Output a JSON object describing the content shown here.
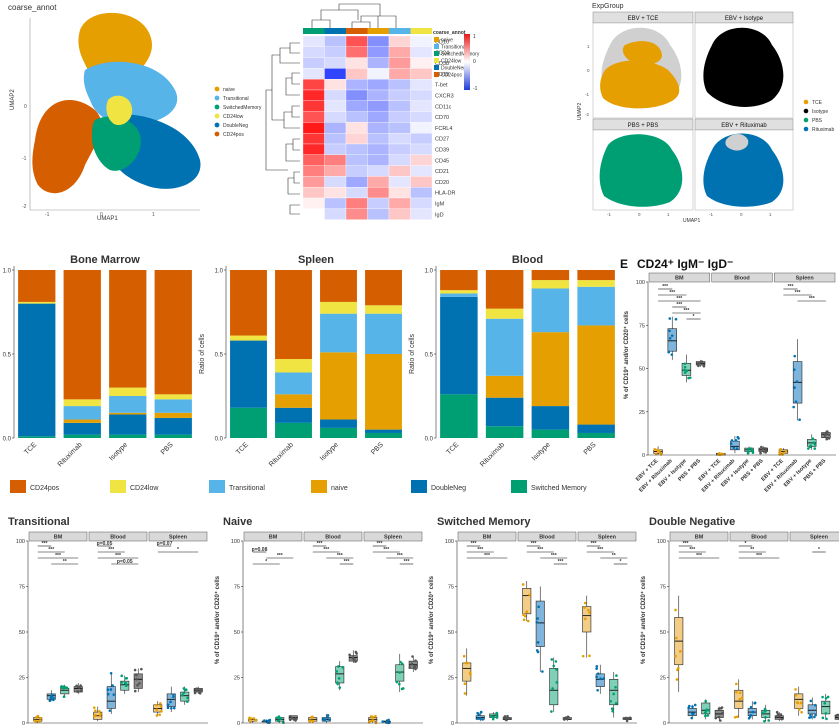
{
  "colors": {
    "CD24pos": "#D55E00",
    "CD24low": "#F0E442",
    "Transitional": "#56B4E9",
    "naive": "#E69F00",
    "DoubleNeg": "#0072B2",
    "SwitchedMemory": "#009E73",
    "TCE": "#E69F00",
    "Isotype": "#000000",
    "PBS": "#009E73",
    "Rituximab": "#0072B2"
  },
  "panelA": {
    "title": "coarse_annot",
    "xlabel": "UMAP1",
    "ylabel": "UMAP2",
    "legend": [
      "naive",
      "Transitional",
      "SwitchedMemory",
      "CD24low",
      "DoubleNeg",
      "CD24pos"
    ],
    "xticks": [
      "-1",
      "0",
      "1"
    ],
    "yticks": [
      "0",
      "-1",
      "-2"
    ]
  },
  "panelHeatmap": {
    "legend_title": "coarse_annot",
    "legend": [
      "naive",
      "Transitional",
      "SwitchedMemory",
      "CD24low",
      "DoubleNeg",
      "CD24pos"
    ],
    "scale_ticks": [
      "1",
      "0",
      "-1"
    ],
    "rows": [
      "CD10",
      "CD24",
      "CD38",
      "CD19",
      "T-bet",
      "CXCR3",
      "CD11c",
      "CD70",
      "FCRL4",
      "CD27",
      "CD39",
      "CD45",
      "CD21",
      "CD20",
      "HLA-DR",
      "IgM",
      "IgD"
    ]
  },
  "panelExpGroup": {
    "title": "ExpGroup",
    "facets": [
      "EBV + TCE",
      "EBV + Isotype",
      "PBS + PBS",
      "EBV + Rituximab"
    ],
    "xlabel": "UMAP1",
    "ylabel": "UMAP2",
    "xticks": [
      "-1",
      "0",
      "1"
    ],
    "yticks": [
      "1",
      "0",
      "-1",
      "-2"
    ],
    "legend": [
      "TCE",
      "Isotype",
      "PBS",
      "Rituximab"
    ]
  },
  "stackedTitles": [
    "Bone Marrow",
    "Spleen",
    "Blood"
  ],
  "stackedYlabel": "Ratio of cells",
  "stackedYticks": [
    "1.0",
    "0.5",
    "0.0"
  ],
  "stackLegend": [
    "CD24pos",
    "CD24low",
    "Transitional",
    "naive",
    "DoubleNeg",
    "Switched Memory"
  ],
  "panelE": {
    "letter": "E",
    "title": "CD24⁺ IgM⁻ IgD⁻",
    "facets": [
      "BM",
      "Blood",
      "Spleen"
    ],
    "ylabel": "% of CD19⁺ and/or CD20⁺ cells",
    "yticks": [
      "100",
      "75",
      "50",
      "25",
      "0"
    ],
    "xticks": [
      "EBV + TCE",
      "EBV + Rituximab",
      "EBV + Isotype",
      "PBS + PBS"
    ]
  },
  "bottomTitles": [
    "Transitional",
    "Naive",
    "Switched Memory",
    "Double Negative"
  ],
  "bottomFacets": [
    "BM",
    "Blood",
    "Spleen"
  ],
  "bottomYlabel": "% of CD19⁺ and/or CD20⁺ cells",
  "bottomYticks": [
    "100",
    "75",
    "50",
    "25",
    "0"
  ],
  "sig": {
    "p05": "p=0.05",
    "p07": "p=0.07",
    "p08": "p=0.08"
  },
  "chart_data": [
    {
      "type": "bar",
      "title": "Bone Marrow",
      "ylabel": "",
      "ylim": [
        0,
        1
      ],
      "categories": [
        "TCE",
        "Rituximab",
        "Isotype",
        "PBS"
      ],
      "series": [
        {
          "name": "Switched Memory",
          "values": [
            0.01,
            0.02,
            0.02,
            0.02
          ]
        },
        {
          "name": "DoubleNeg",
          "values": [
            0.79,
            0.07,
            0.12,
            0.1
          ]
        },
        {
          "name": "naive",
          "values": [
            0.0,
            0.02,
            0.01,
            0.03
          ]
        },
        {
          "name": "Transitional",
          "values": [
            0.0,
            0.08,
            0.1,
            0.08
          ]
        },
        {
          "name": "CD24low",
          "values": [
            0.01,
            0.04,
            0.05,
            0.03
          ]
        },
        {
          "name": "CD24pos",
          "values": [
            0.19,
            0.77,
            0.7,
            0.74
          ]
        }
      ]
    },
    {
      "type": "bar",
      "title": "Spleen",
      "ylabel": "Ratio of cells",
      "ylim": [
        0,
        1
      ],
      "categories": [
        "TCE",
        "Rituximab",
        "Isotype",
        "PBS"
      ],
      "series": [
        {
          "name": "Switched Memory",
          "values": [
            0.18,
            0.09,
            0.06,
            0.03
          ]
        },
        {
          "name": "DoubleNeg",
          "values": [
            0.4,
            0.09,
            0.05,
            0.02
          ]
        },
        {
          "name": "naive",
          "values": [
            0.0,
            0.08,
            0.4,
            0.45
          ]
        },
        {
          "name": "Transitional",
          "values": [
            0.0,
            0.13,
            0.23,
            0.24
          ]
        },
        {
          "name": "CD24low",
          "values": [
            0.03,
            0.08,
            0.07,
            0.05
          ]
        },
        {
          "name": "CD24pos",
          "values": [
            0.39,
            0.53,
            0.19,
            0.21
          ]
        }
      ]
    },
    {
      "type": "bar",
      "title": "Blood",
      "ylabel": "Ratio of cells",
      "ylim": [
        0,
        1
      ],
      "categories": [
        "TCE",
        "Rituximab",
        "Isotype",
        "PBS"
      ],
      "series": [
        {
          "name": "Switched Memory",
          "values": [
            0.26,
            0.07,
            0.05,
            0.03
          ]
        },
        {
          "name": "DoubleNeg",
          "values": [
            0.58,
            0.17,
            0.14,
            0.05
          ]
        },
        {
          "name": "naive",
          "values": [
            0.0,
            0.13,
            0.44,
            0.59
          ]
        },
        {
          "name": "Transitional",
          "values": [
            0.02,
            0.34,
            0.26,
            0.23
          ]
        },
        {
          "name": "CD24low",
          "values": [
            0.02,
            0.06,
            0.05,
            0.04
          ]
        },
        {
          "name": "CD24pos",
          "values": [
            0.12,
            0.23,
            0.06,
            0.06
          ]
        }
      ]
    },
    {
      "type": "box",
      "title": "CD24⁺ IgM⁻ IgD⁻",
      "ylabel": "% of CD19⁺ and/or CD20⁺ cells",
      "ylim": [
        0,
        100
      ],
      "facets": [
        "BM",
        "Blood",
        "Spleen"
      ],
      "groups": [
        "EBV + TCE",
        "EBV + Rituximab",
        "EBV + Isotype",
        "PBS + PBS"
      ],
      "boxes": [
        [
          [
            0,
            1,
            2,
            3,
            5
          ],
          [
            55,
            60,
            66,
            73,
            80
          ],
          [
            42,
            46,
            49,
            53,
            58
          ],
          [
            51,
            52,
            53,
            54,
            55
          ]
        ],
        [
          [
            0,
            0,
            0,
            1,
            1
          ],
          [
            1,
            3,
            5,
            8,
            11
          ],
          [
            1,
            2,
            3,
            4,
            5
          ],
          [
            1,
            2,
            3,
            4,
            5
          ]
        ],
        [
          [
            0,
            1,
            2,
            3,
            4
          ],
          [
            20,
            30,
            42,
            54,
            67
          ],
          [
            3,
            5,
            7,
            9,
            12
          ],
          [
            9,
            10,
            12,
            13,
            14
          ]
        ]
      ]
    },
    {
      "type": "box",
      "title": "Transitional",
      "ylim": [
        0,
        100
      ],
      "facets": [
        "BM",
        "Blood",
        "Spleen"
      ],
      "groups": [
        "EBV + TCE",
        "EBV + Rituximab",
        "EBV + Isotype",
        "PBS + PBS"
      ],
      "boxes": [
        [
          [
            0,
            1,
            2,
            3,
            4
          ],
          [
            12,
            13,
            15,
            16,
            18
          ],
          [
            14,
            16,
            18,
            19,
            21
          ],
          [
            16,
            17,
            19,
            20,
            22
          ]
        ],
        [
          [
            1,
            2,
            4,
            6,
            9
          ],
          [
            5,
            8,
            12,
            20,
            28
          ],
          [
            16,
            18,
            21,
            23,
            26
          ],
          [
            17,
            19,
            24,
            27,
            30
          ]
        ],
        [
          [
            4,
            6,
            8,
            10,
            12
          ],
          [
            6,
            9,
            13,
            16,
            20
          ],
          [
            10,
            12,
            15,
            17,
            20
          ],
          [
            16,
            17,
            18,
            19,
            20
          ]
        ]
      ]
    },
    {
      "type": "box",
      "title": "Naive",
      "ylim": [
        0,
        100
      ],
      "facets": [
        "BM",
        "Blood",
        "Spleen"
      ],
      "groups": [
        "EBV + TCE",
        "EBV + Rituximab",
        "EBV + Isotype",
        "PBS + PBS"
      ],
      "boxes": [
        [
          [
            0,
            1,
            2,
            2,
            3
          ],
          [
            0,
            1,
            1,
            1,
            2
          ],
          [
            0,
            1,
            2,
            3,
            4
          ],
          [
            1,
            2,
            3,
            4,
            4
          ]
        ],
        [
          [
            0,
            1,
            2,
            3,
            4
          ],
          [
            0,
            1,
            2,
            3,
            5
          ],
          [
            18,
            22,
            27,
            31,
            34
          ],
          [
            33,
            34,
            36,
            37,
            40
          ]
        ],
        [
          [
            0,
            1,
            2,
            3,
            4
          ],
          [
            0,
            1,
            1,
            1,
            2
          ],
          [
            17,
            23,
            28,
            32,
            38
          ],
          [
            28,
            30,
            32,
            34,
            37
          ]
        ]
      ]
    },
    {
      "type": "box",
      "title": "Switched Memory",
      "ylim": [
        0,
        100
      ],
      "facets": [
        "BM",
        "Blood",
        "Spleen"
      ],
      "groups": [
        "EBV + TCE",
        "EBV + Rituximab",
        "EBV + Isotype",
        "PBS + PBS"
      ],
      "boxes": [
        [
          [
            15,
            23,
            30,
            33,
            41
          ],
          [
            1,
            2,
            3,
            4,
            6
          ],
          [
            2,
            3,
            4,
            5,
            6
          ],
          [
            1,
            2,
            2,
            3,
            4
          ]
        ],
        [
          [
            56,
            60,
            70,
            74,
            78
          ],
          [
            28,
            42,
            55,
            67,
            75
          ],
          [
            6,
            10,
            18,
            30,
            36
          ],
          [
            1,
            2,
            2,
            3,
            4
          ]
        ],
        [
          [
            36,
            50,
            59,
            64,
            70
          ],
          [
            16,
            20,
            24,
            27,
            32
          ],
          [
            3,
            10,
            18,
            24,
            28
          ],
          [
            1,
            2,
            2,
            3,
            3
          ]
        ]
      ]
    },
    {
      "type": "box",
      "title": "Double Negative",
      "ylim": [
        0,
        100
      ],
      "facets": [
        "BM",
        "Blood",
        "Spleen"
      ],
      "groups": [
        "EBV + TCE",
        "EBV + Rituximab",
        "EBV + Isotype",
        "PBS + PBS"
      ],
      "boxes": [
        [
          [
            17,
            32,
            45,
            58,
            70
          ],
          [
            2,
            4,
            6,
            8,
            10
          ],
          [
            2,
            5,
            7,
            11,
            13
          ],
          [
            1,
            3,
            5,
            7,
            9
          ]
        ],
        [
          [
            3,
            8,
            12,
            18,
            24
          ],
          [
            2,
            4,
            6,
            8,
            12
          ],
          [
            1,
            3,
            5,
            7,
            10
          ],
          [
            1,
            2,
            3,
            4,
            6
          ]
        ],
        [
          [
            4,
            8,
            13,
            16,
            20
          ],
          [
            2,
            5,
            7,
            10,
            14
          ],
          [
            2,
            5,
            9,
            12,
            16
          ],
          [
            1,
            2,
            3,
            4,
            5
          ]
        ]
      ]
    }
  ]
}
